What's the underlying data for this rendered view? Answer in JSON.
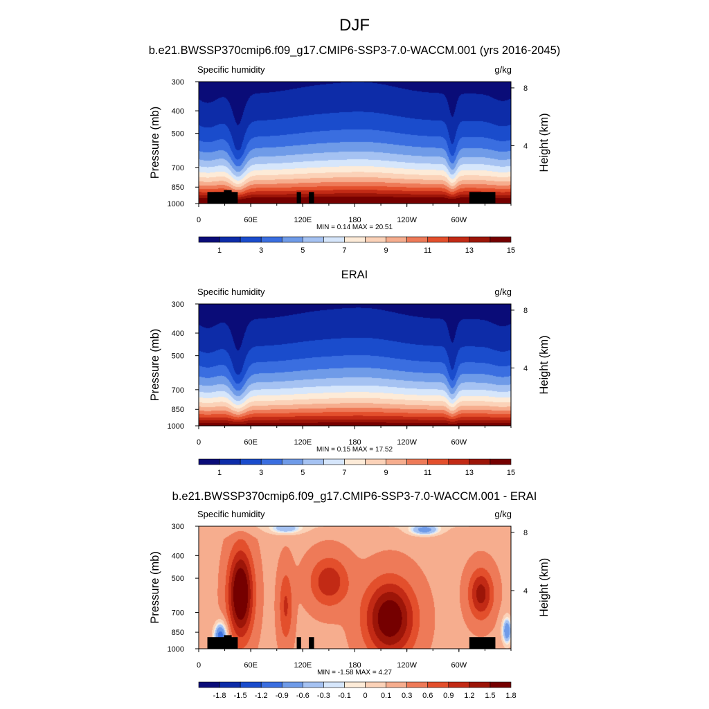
{
  "figure": {
    "title": "DJF"
  },
  "colors": {
    "abs_scale": [
      "#0a0c78",
      "#0d2ca8",
      "#1a4ccc",
      "#3a6ee0",
      "#6f9be8",
      "#a5c2f2",
      "#d6e6fb",
      "#fdebd8",
      "#fbd2b8",
      "#f6ad8e",
      "#ee7a58",
      "#e34f2c",
      "#c22a15",
      "#9c1508",
      "#750000"
    ],
    "diff_scale": [
      "#0a0c78",
      "#0d2ca8",
      "#1a4ccc",
      "#3a6ee0",
      "#6f9be8",
      "#a5c2f2",
      "#d6e6fb",
      "#fdebd8",
      "#fbd2b8",
      "#f6ad8e",
      "#ee7a58",
      "#e34f2c",
      "#c22a15",
      "#9c1508",
      "#750000"
    ],
    "terrain": "#000000"
  },
  "chart_data": [
    {
      "type": "heatmap",
      "title": "b.e21.BWSSP370cmip6.f09_g17.CMIP6-SSP3-7.0-WACCM.001 (yrs 2016-2045)",
      "left_label": "Specific humidity",
      "right_label": "g/kg",
      "ylabel": "Pressure (mb)",
      "ylabel_right": "Height (km)",
      "x_ticks": [
        "0",
        "60E",
        "120E",
        "180",
        "120W",
        "60W"
      ],
      "y_ticks": [
        "300",
        "400",
        "500",
        "700",
        "850",
        "1000"
      ],
      "y_ticks_right": [
        "8",
        "4"
      ],
      "stats": "MIN =   0.14  MAX =  20.51",
      "colorbar_labels": [
        "1",
        "3",
        "5",
        "7",
        "9",
        "11",
        "13",
        "15"
      ],
      "colorbar_levels": [
        0.5,
        1,
        2,
        3,
        4,
        5,
        6,
        7,
        8,
        9,
        10,
        11,
        12,
        13,
        14,
        15
      ],
      "xlim": [
        0,
        360
      ],
      "ylim": [
        1000,
        300
      ]
    },
    {
      "type": "heatmap",
      "title": "ERAI",
      "left_label": "Specific humidity",
      "right_label": "g/kg",
      "ylabel": "Pressure (mb)",
      "ylabel_right": "Height (km)",
      "x_ticks": [
        "0",
        "60E",
        "120E",
        "180",
        "120W",
        "60W"
      ],
      "y_ticks": [
        "300",
        "400",
        "500",
        "700",
        "850",
        "1000"
      ],
      "y_ticks_right": [
        "8",
        "4"
      ],
      "stats": "MIN =   0.15  MAX =  17.52",
      "colorbar_labels": [
        "1",
        "3",
        "5",
        "7",
        "9",
        "11",
        "13",
        "15"
      ],
      "colorbar_levels": [
        0.5,
        1,
        2,
        3,
        4,
        5,
        6,
        7,
        8,
        9,
        10,
        11,
        12,
        13,
        14,
        15
      ],
      "xlim": [
        0,
        360
      ],
      "ylim": [
        1000,
        300
      ]
    },
    {
      "type": "heatmap",
      "title": "b.e21.BWSSP370cmip6.f09_g17.CMIP6-SSP3-7.0-WACCM.001 - ERAI",
      "left_label": "Specific humidity",
      "right_label": "g/kg",
      "ylabel": "Pressure (mb)",
      "ylabel_right": "Height (km)",
      "x_ticks": [
        "0",
        "60E",
        "120E",
        "180",
        "120W",
        "60W"
      ],
      "y_ticks": [
        "300",
        "400",
        "500",
        "700",
        "850",
        "1000"
      ],
      "y_ticks_right": [
        "8",
        "4"
      ],
      "stats": "MIN =  -1.58  MAX =   4.27",
      "colorbar_labels": [
        "-1.8",
        "-1.5",
        "-1.2",
        "-0.9",
        "-0.6",
        "-0.3",
        "-0.1",
        "0",
        "0.1",
        "0.3",
        "0.6",
        "0.9",
        "1.2",
        "1.5",
        "1.8"
      ],
      "colorbar_levels": [
        -1.8,
        -1.5,
        -1.2,
        -0.9,
        -0.6,
        -0.3,
        -0.1,
        0,
        0.1,
        0.3,
        0.6,
        0.9,
        1.2,
        1.5,
        1.8
      ],
      "xlim": [
        0,
        360
      ],
      "ylim": [
        1000,
        300
      ]
    }
  ]
}
